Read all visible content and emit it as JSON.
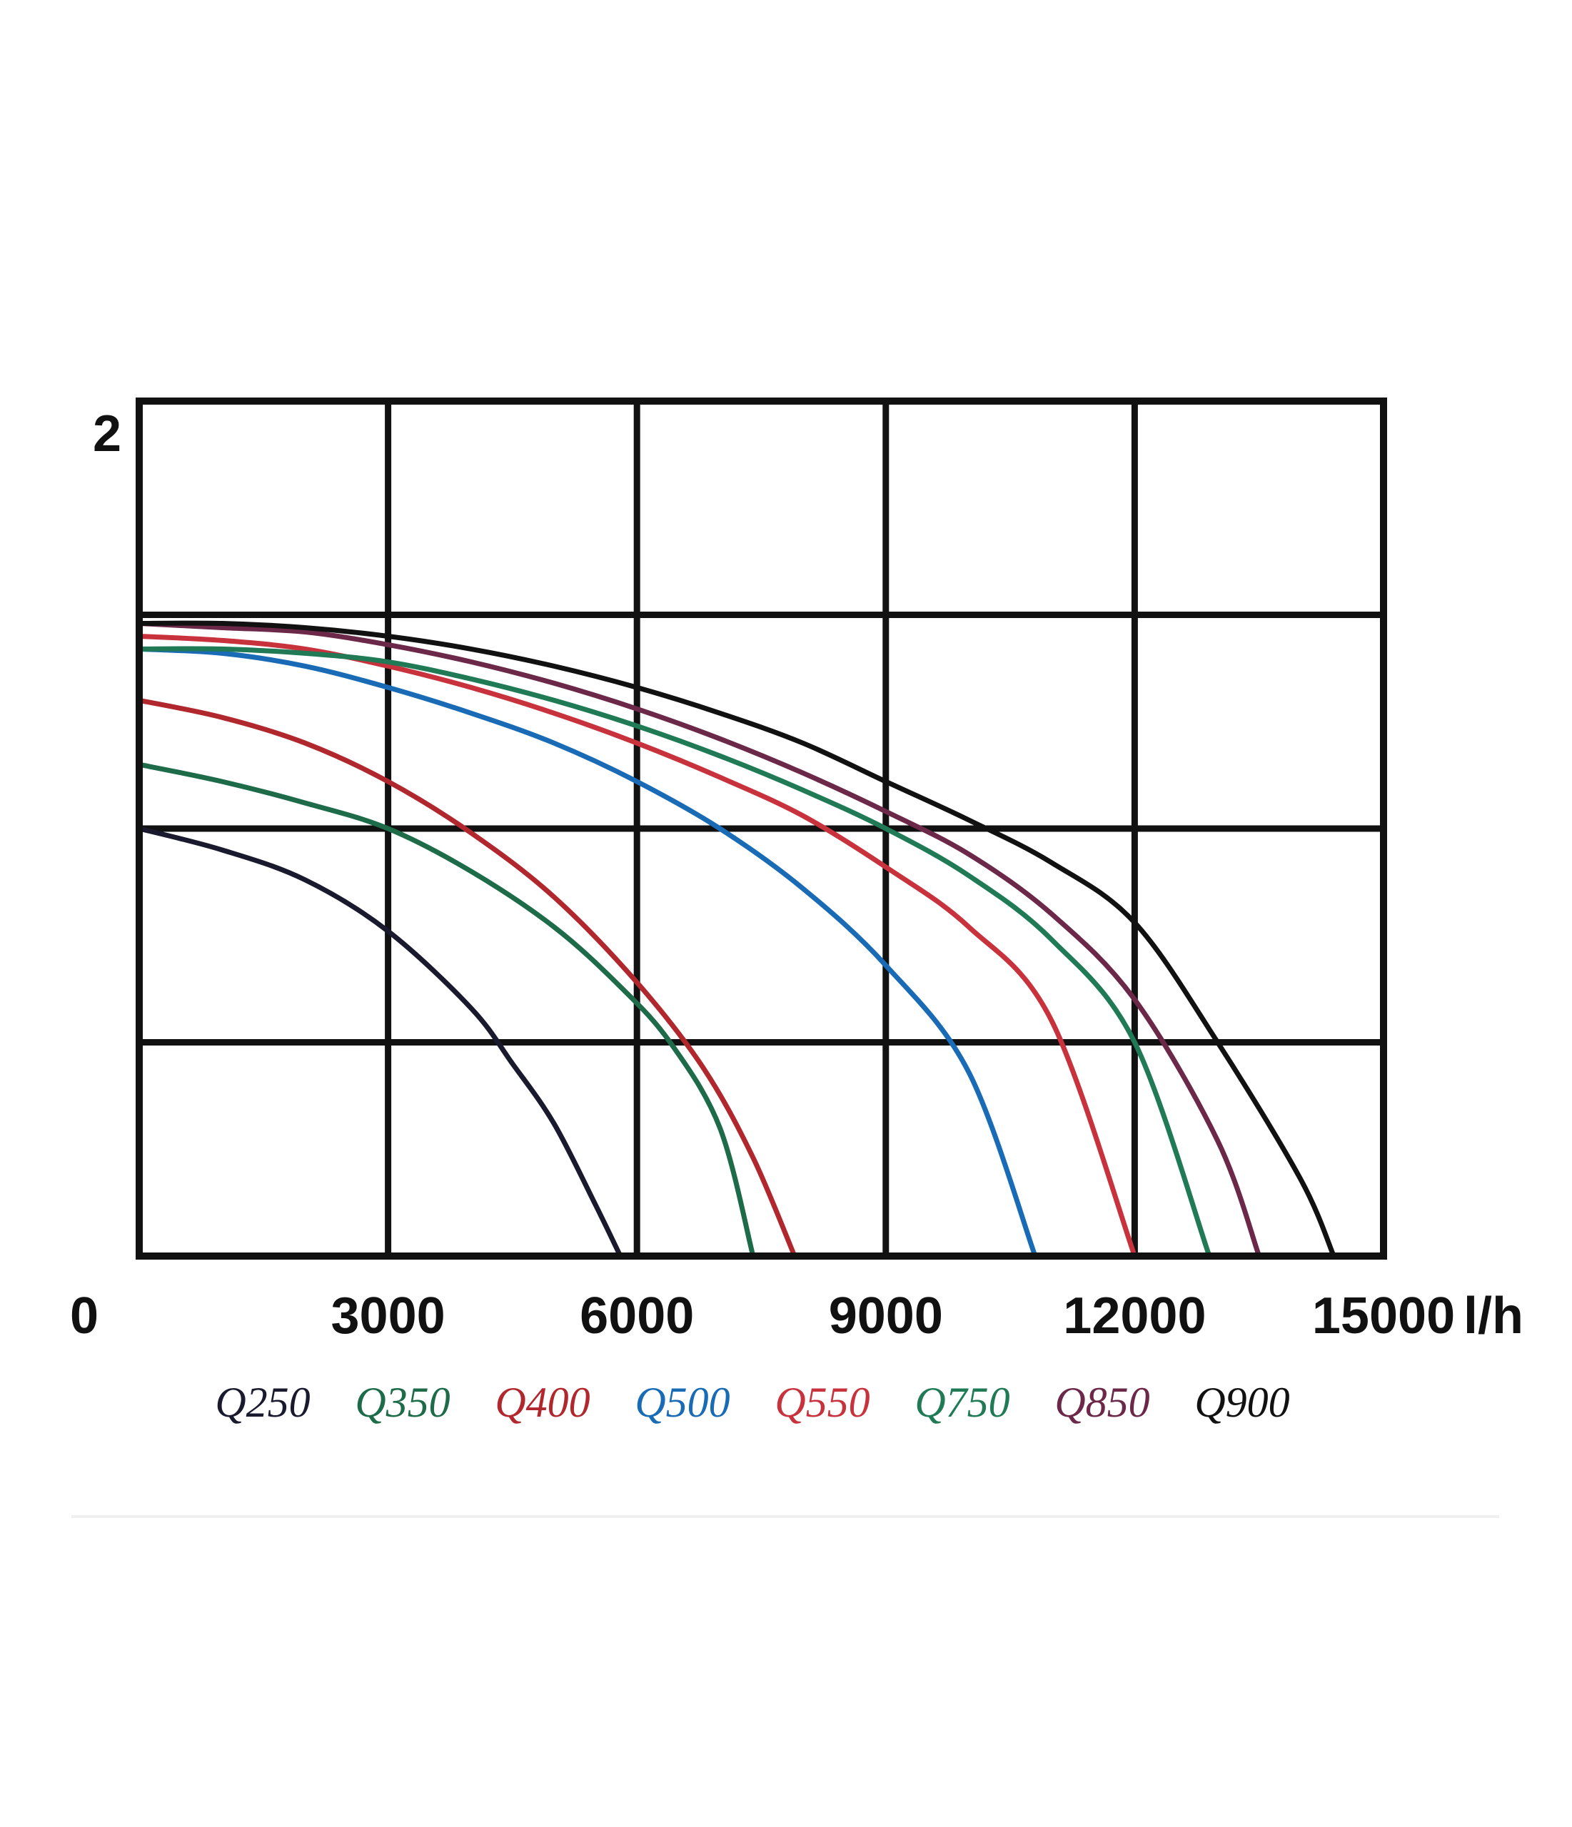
{
  "chart_data": {
    "type": "line",
    "title": "",
    "xlabel": "",
    "ylabel": "",
    "x_unit": "l/h",
    "xlim": [
      0,
      15000
    ],
    "ylim": [
      0,
      2
    ],
    "x_ticks": [
      "0",
      "3000",
      "6000",
      "9000",
      "12000",
      "15000"
    ],
    "y_ticks": [
      "2"
    ],
    "grid": true,
    "legend_position": "bottom",
    "series": [
      {
        "name": "Q250",
        "color": "#1a1a2e",
        "x": [
          0,
          1000,
          2000,
          3000,
          4000,
          4500,
          5000,
          5500,
          5800
        ],
        "y": [
          1.0,
          0.95,
          0.88,
          0.76,
          0.58,
          0.45,
          0.31,
          0.12,
          0.0
        ]
      },
      {
        "name": "Q350",
        "color": "#1e6b4a",
        "x": [
          0,
          1000,
          2000,
          3000,
          4000,
          5000,
          5800,
          6400,
          7000,
          7400
        ],
        "y": [
          1.15,
          1.11,
          1.06,
          1.0,
          0.9,
          0.77,
          0.63,
          0.5,
          0.3,
          0.0
        ]
      },
      {
        "name": "Q400",
        "color": "#b0282e",
        "x": [
          0,
          1000,
          2000,
          3000,
          4000,
          5000,
          6000,
          6800,
          7400,
          7900
        ],
        "y": [
          1.3,
          1.26,
          1.2,
          1.11,
          0.99,
          0.84,
          0.64,
          0.44,
          0.23,
          0.0
        ]
      },
      {
        "name": "Q500",
        "color": "#1a6bb5",
        "x": [
          0,
          1000,
          2000,
          3000,
          4000,
          5000,
          6000,
          7000,
          8000,
          9000,
          10000,
          10800
        ],
        "y": [
          1.42,
          1.41,
          1.38,
          1.33,
          1.27,
          1.2,
          1.11,
          1.0,
          0.86,
          0.68,
          0.43,
          0.0
        ]
      },
      {
        "name": "Q550",
        "color": "#c8323c",
        "x": [
          0,
          1000,
          2000,
          3000,
          4000,
          5000,
          6000,
          7000,
          8000,
          9000,
          10000,
          11000,
          12000
        ],
        "y": [
          1.45,
          1.44,
          1.42,
          1.38,
          1.33,
          1.27,
          1.2,
          1.12,
          1.03,
          0.91,
          0.77,
          0.55,
          0.0
        ]
      },
      {
        "name": "Q750",
        "color": "#1f7a55",
        "x": [
          0,
          1000,
          2000,
          3000,
          4000,
          5000,
          6000,
          7000,
          8000,
          9000,
          10000,
          11000,
          12000,
          12900
        ],
        "y": [
          1.42,
          1.42,
          1.41,
          1.39,
          1.35,
          1.3,
          1.24,
          1.17,
          1.09,
          1.0,
          0.89,
          0.74,
          0.5,
          0.0
        ]
      },
      {
        "name": "Q850",
        "color": "#6b2848",
        "x": [
          0,
          1000,
          2000,
          3000,
          4000,
          5000,
          6000,
          7000,
          8000,
          9000,
          10000,
          11000,
          12000,
          13000,
          13500
        ],
        "y": [
          1.48,
          1.47,
          1.46,
          1.43,
          1.39,
          1.34,
          1.28,
          1.21,
          1.13,
          1.04,
          0.94,
          0.8,
          0.6,
          0.27,
          0.0
        ]
      },
      {
        "name": "Q900",
        "color": "#111111",
        "x": [
          0,
          1000,
          2000,
          3000,
          4000,
          5000,
          6000,
          7000,
          8000,
          9000,
          10000,
          11000,
          12000,
          13000,
          14000,
          14400
        ],
        "y": [
          1.48,
          1.48,
          1.47,
          1.45,
          1.42,
          1.38,
          1.33,
          1.27,
          1.2,
          1.11,
          1.02,
          0.92,
          0.78,
          0.5,
          0.18,
          0.0
        ]
      }
    ]
  },
  "legend_labels": [
    "Q250",
    "Q350",
    "Q400",
    "Q500",
    "Q550",
    "Q750",
    "Q850",
    "Q900"
  ]
}
